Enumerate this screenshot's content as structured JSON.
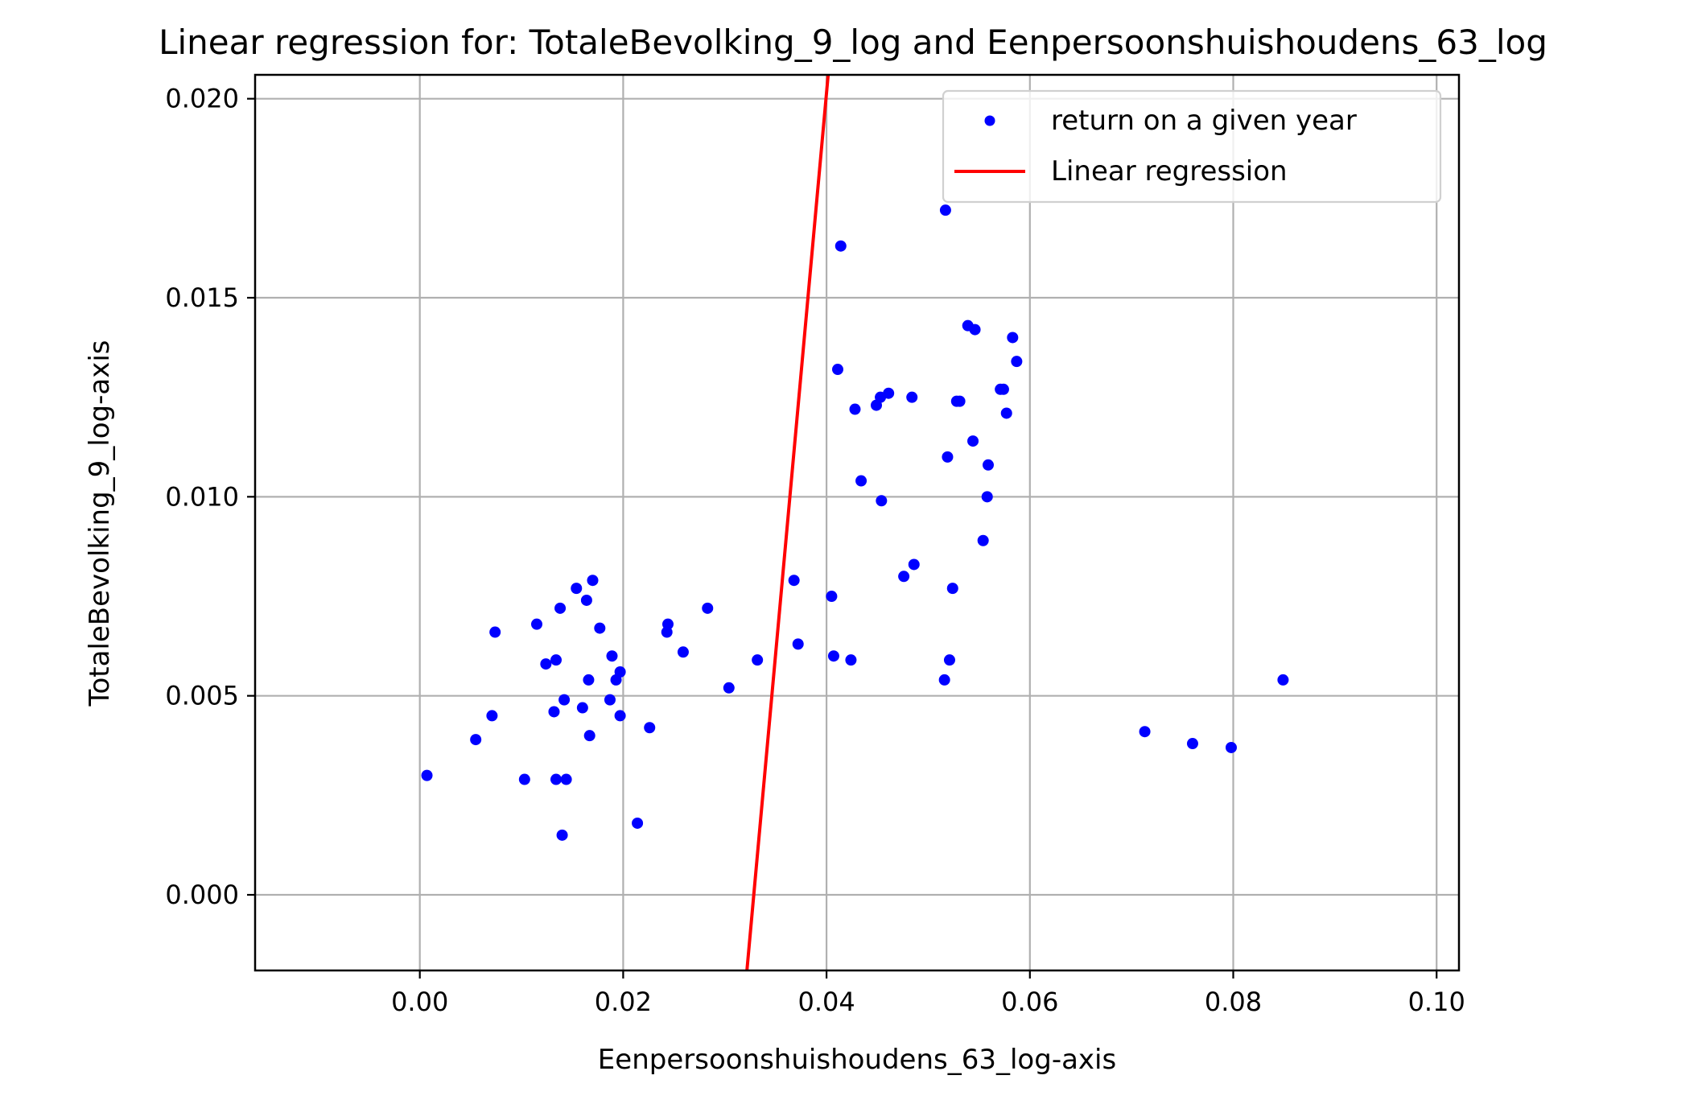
{
  "chart_data": {
    "type": "scatter",
    "title": "Linear regression for: TotaleBevolking_9_log and Eenpersoonshuishoudens_63_log",
    "xlabel": "Eenpersoonshuishoudens_63_log-axis",
    "ylabel": "TotaleBevolking_9_log-axis",
    "xlim": [
      -0.0162,
      0.1022
    ],
    "ylim": [
      -0.0019,
      0.0206
    ],
    "grid": true,
    "legend_position": "top-right",
    "x_ticks": [
      0.0,
      0.02,
      0.04,
      0.06,
      0.08,
      0.1
    ],
    "x_tick_labels": [
      "0.00",
      "0.02",
      "0.04",
      "0.06",
      "0.08",
      "0.10"
    ],
    "y_ticks": [
      0.0,
      0.005,
      0.01,
      0.015,
      0.02
    ],
    "y_tick_labels": [
      "0.000",
      "0.005",
      "0.010",
      "0.015",
      "0.020"
    ],
    "series": [
      {
        "name": "return on a given year",
        "kind": "scatter",
        "color": "#0000ff",
        "points": [
          [
            0.0007,
            0.003
          ],
          [
            0.0055,
            0.0039
          ],
          [
            0.0071,
            0.0045
          ],
          [
            0.0074,
            0.0066
          ],
          [
            0.0103,
            0.0029
          ],
          [
            0.0115,
            0.0068
          ],
          [
            0.0124,
            0.0058
          ],
          [
            0.0132,
            0.0046
          ],
          [
            0.0134,
            0.0059
          ],
          [
            0.0134,
            0.0029
          ],
          [
            0.0138,
            0.0072
          ],
          [
            0.014,
            0.0015
          ],
          [
            0.0142,
            0.0049
          ],
          [
            0.0144,
            0.0029
          ],
          [
            0.0154,
            0.0077
          ],
          [
            0.016,
            0.0047
          ],
          [
            0.0164,
            0.0074
          ],
          [
            0.0166,
            0.0054
          ],
          [
            0.0167,
            0.004
          ],
          [
            0.017,
            0.0079
          ],
          [
            0.0177,
            0.0067
          ],
          [
            0.0187,
            0.0049
          ],
          [
            0.0189,
            0.006
          ],
          [
            0.0193,
            0.0054
          ],
          [
            0.0197,
            0.0056
          ],
          [
            0.0197,
            0.0045
          ],
          [
            0.0214,
            0.0018
          ],
          [
            0.0226,
            0.0042
          ],
          [
            0.0243,
            0.0066
          ],
          [
            0.0244,
            0.0068
          ],
          [
            0.0259,
            0.0061
          ],
          [
            0.0283,
            0.0072
          ],
          [
            0.0304,
            0.0052
          ],
          [
            0.0332,
            0.0059
          ],
          [
            0.0368,
            0.0079
          ],
          [
            0.0372,
            0.0063
          ],
          [
            0.0405,
            0.0075
          ],
          [
            0.0407,
            0.006
          ],
          [
            0.0411,
            0.0132
          ],
          [
            0.0414,
            0.0163
          ],
          [
            0.0424,
            0.0059
          ],
          [
            0.0428,
            0.0122
          ],
          [
            0.0434,
            0.0104
          ],
          [
            0.0449,
            0.0123
          ],
          [
            0.0453,
            0.0125
          ],
          [
            0.0454,
            0.0099
          ],
          [
            0.0461,
            0.0126
          ],
          [
            0.0476,
            0.008
          ],
          [
            0.0484,
            0.0125
          ],
          [
            0.0486,
            0.0083
          ],
          [
            0.0516,
            0.0054
          ],
          [
            0.0517,
            0.0172
          ],
          [
            0.0519,
            0.011
          ],
          [
            0.0521,
            0.0059
          ],
          [
            0.0524,
            0.0077
          ],
          [
            0.0528,
            0.0124
          ],
          [
            0.0531,
            0.0124
          ],
          [
            0.0539,
            0.0143
          ],
          [
            0.0544,
            0.0114
          ],
          [
            0.0546,
            0.0142
          ],
          [
            0.0554,
            0.0089
          ],
          [
            0.0558,
            0.01
          ],
          [
            0.0559,
            0.0108
          ],
          [
            0.0571,
            0.0127
          ],
          [
            0.0574,
            0.0127
          ],
          [
            0.0577,
            0.0121
          ],
          [
            0.0583,
            0.014
          ],
          [
            0.0587,
            0.0134
          ],
          [
            0.0713,
            0.0041
          ],
          [
            0.076,
            0.0038
          ],
          [
            0.0798,
            0.0037
          ],
          [
            0.0849,
            0.0054
          ]
        ]
      },
      {
        "name": "Linear regression",
        "kind": "line",
        "color": "#ff0000",
        "points": [
          [
            0.03217,
            -0.0019
          ],
          [
            0.04016,
            0.0206
          ]
        ]
      }
    ]
  }
}
